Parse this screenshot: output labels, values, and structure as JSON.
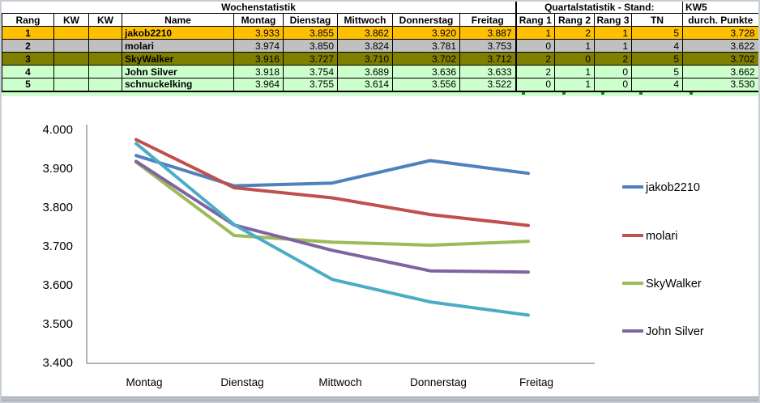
{
  "table": {
    "titles": {
      "week": "Wochenstatistik",
      "quarter": "Quartalstatistik - Stand:",
      "quarter_kw": "KW5"
    },
    "columns": [
      "Rang",
      "KW",
      "KW",
      "Name",
      "Montag",
      "Dienstag",
      "Mittwoch",
      "Donnerstag",
      "Freitag",
      "Rang 1",
      "Rang 2",
      "Rang 3",
      "TN",
      "durch. Punkte"
    ],
    "rows": [
      {
        "rang": "1",
        "kw1": "",
        "kw2": "",
        "name": "jakob2210",
        "montag": "3.933",
        "dienstag": "3.855",
        "mittwoch": "3.862",
        "donnerstag": "3.920",
        "freitag": "3.887",
        "rang1": "1",
        "rang2": "2",
        "rang3": "1",
        "tn": "5",
        "punkte": "3.728",
        "tone": "gold"
      },
      {
        "rang": "2",
        "kw1": "",
        "kw2": "",
        "name": "molari",
        "montag": "3.974",
        "dienstag": "3.850",
        "mittwoch": "3.824",
        "donnerstag": "3.781",
        "freitag": "3.753",
        "rang1": "0",
        "rang2": "1",
        "rang3": "1",
        "tn": "4",
        "punkte": "3.622",
        "tone": "gray"
      },
      {
        "rang": "3",
        "kw1": "",
        "kw2": "",
        "name": "SkyWalker",
        "montag": "3.916",
        "dienstag": "3.727",
        "mittwoch": "3.710",
        "donnerstag": "3.702",
        "freitag": "3.712",
        "rang1": "2",
        "rang2": "0",
        "rang3": "2",
        "tn": "5",
        "punkte": "3.702",
        "tone": "olive"
      },
      {
        "rang": "4",
        "kw1": "",
        "kw2": "",
        "name": "John Silver",
        "montag": "3.918",
        "dienstag": "3.754",
        "mittwoch": "3.689",
        "donnerstag": "3.636",
        "freitag": "3.633",
        "rang1": "2",
        "rang2": "1",
        "rang3": "0",
        "tn": "5",
        "punkte": "3.662",
        "tone": "green"
      },
      {
        "rang": "5",
        "kw1": "",
        "kw2": "",
        "name": "schnuckelking",
        "montag": "3.964",
        "dienstag": "3.755",
        "mittwoch": "3.614",
        "donnerstag": "3.556",
        "freitag": "3.522",
        "rang1": "0",
        "rang2": "1",
        "rang3": "0",
        "tn": "4",
        "punkte": "3.530",
        "tone": "green"
      }
    ],
    "row_fill_colors": {
      "gold": "#FFC000",
      "gray": "#C0C0C0",
      "olive": "#808000",
      "green": "#CCFFCC"
    }
  },
  "chart_data": {
    "type": "line",
    "x": [
      "Montag",
      "Dienstag",
      "Mittwoch",
      "Donnerstag",
      "Freitag"
    ],
    "series": [
      {
        "name": "jakob2210",
        "color": "#4F81BD",
        "values": [
          3.933,
          3.855,
          3.862,
          3.92,
          3.887
        ]
      },
      {
        "name": "molari",
        "color": "#C0504D",
        "values": [
          3.974,
          3.85,
          3.824,
          3.781,
          3.753
        ]
      },
      {
        "name": "SkyWalker",
        "color": "#9BBB59",
        "values": [
          3.916,
          3.727,
          3.71,
          3.702,
          3.712
        ]
      },
      {
        "name": "John Silver",
        "color": "#8064A2",
        "values": [
          3.918,
          3.754,
          3.689,
          3.636,
          3.633
        ]
      },
      {
        "name": "schnuckelking",
        "color": "#4BACC6",
        "values": [
          3.964,
          3.755,
          3.614,
          3.556,
          3.522
        ]
      }
    ],
    "y_ticks": [
      "4.000",
      "3.900",
      "3.800",
      "3.700",
      "3.600",
      "3.500",
      "3.400"
    ],
    "ylim": [
      3.4,
      4.0
    ],
    "grid": false,
    "legend_position": "right",
    "legend_visible_entries": [
      "jakob2210",
      "molari",
      "SkyWalker",
      "John Silver"
    ],
    "axis_color": "#9c9c9c"
  }
}
